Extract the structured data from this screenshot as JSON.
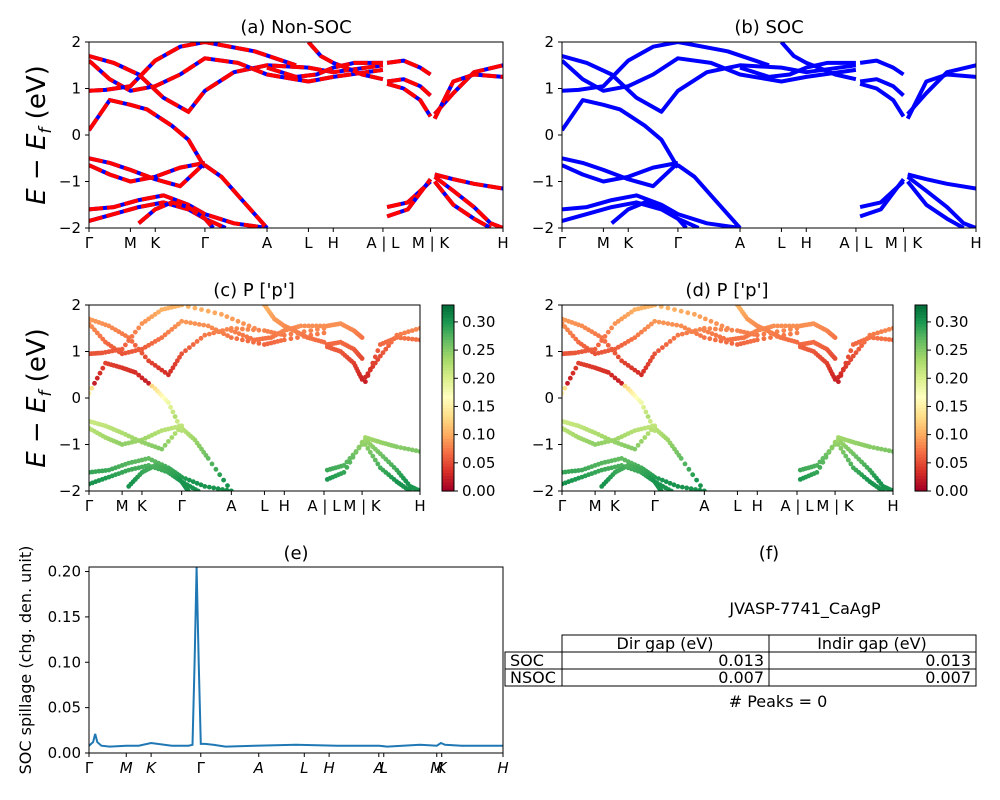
{
  "colors": {
    "nonsoc_dash": "#ff0000",
    "soc_line": "#0000ff",
    "spillage_line": "#1f77b4",
    "colormap": [
      "#a50026",
      "#d73027",
      "#f46d43",
      "#fdae61",
      "#fee08b",
      "#ffffbf",
      "#d9ef8b",
      "#a6d96a",
      "#66bd63",
      "#1a9850",
      "#006837"
    ]
  },
  "kpath": {
    "labels": [
      "Γ",
      "M",
      "K",
      "Γ",
      "A",
      "L",
      "H",
      "A | L",
      "M | K",
      "H"
    ],
    "positions": [
      0,
      0.1,
      0.16,
      0.28,
      0.43,
      0.53,
      0.59,
      0.71,
      0.825,
      1.0
    ],
    "breaks": [
      0.71,
      0.825
    ]
  },
  "spillage_kpath": {
    "labels": [
      "Γ",
      "M",
      "K",
      "Γ",
      "A",
      "L",
      "H",
      "A",
      "L",
      "M",
      "K",
      "H"
    ],
    "positions": [
      0,
      0.09,
      0.15,
      0.27,
      0.41,
      0.52,
      0.58,
      0.7,
      0.712,
      0.84,
      0.852,
      1.0
    ]
  },
  "chart_data": [
    {
      "type": "line",
      "title": "(a) Non-SOC",
      "ylabel": "E − E_f (eV)",
      "ylim": [
        -2,
        2
      ],
      "yticks": [
        "−2",
        "−1",
        "0",
        "1",
        "2"
      ],
      "series": [
        {
          "x": [
            0,
            0.06,
            0.12,
            0.18,
            0.24,
            0.28,
            0.35,
            0.43,
            0.53,
            0.59,
            0.71
          ],
          "y": [
            1.7,
            1.55,
            1.3,
            0.8,
            0.5,
            0.95,
            1.35,
            1.5,
            1.45,
            1.35,
            1.5
          ]
        },
        {
          "x": [
            0,
            0.05,
            0.1,
            0.16,
            0.22,
            0.28,
            0.36,
            0.43,
            0.53,
            0.59,
            0.71
          ],
          "y": [
            1.6,
            1.2,
            0.95,
            1.05,
            1.3,
            1.65,
            1.55,
            1.3,
            1.15,
            1.25,
            1.4
          ]
        },
        {
          "x": [
            0,
            0.04,
            0.1,
            0.16,
            0.22,
            0.28,
            0.4,
            0.5
          ],
          "y": [
            0.95,
            0.97,
            1.05,
            1.6,
            1.9,
            2.0,
            1.8,
            1.5
          ]
        },
        {
          "x": [
            0,
            0.05,
            0.1,
            0.14,
            0.2,
            0.24,
            0.28
          ],
          "y": [
            0.1,
            0.75,
            0.65,
            0.55,
            0.2,
            -0.1,
            -0.7
          ]
        },
        {
          "x": [
            0,
            0.05,
            0.1,
            0.16,
            0.22,
            0.28
          ],
          "y": [
            -0.65,
            -0.85,
            -1.0,
            -0.9,
            -0.7,
            -0.6
          ]
        },
        {
          "x": [
            0,
            0.05,
            0.1,
            0.16,
            0.22,
            0.28
          ],
          "y": [
            -0.5,
            -0.6,
            -0.75,
            -0.95,
            -1.1,
            -0.6
          ]
        },
        {
          "x": [
            0,
            0.06,
            0.12,
            0.18,
            0.24,
            0.28,
            0.35,
            0.43
          ],
          "y": [
            -1.6,
            -1.55,
            -1.4,
            -1.3,
            -1.5,
            -1.7,
            -1.9,
            -2.0
          ]
        },
        {
          "x": [
            0,
            0.06,
            0.12,
            0.18,
            0.24,
            0.28,
            0.33
          ],
          "y": [
            -1.85,
            -1.7,
            -1.55,
            -1.45,
            -1.6,
            -1.8,
            -2.0
          ]
        },
        {
          "x": [
            0.28,
            0.32,
            0.36,
            0.43
          ],
          "y": [
            -0.65,
            -0.9,
            -1.3,
            -2.0
          ]
        },
        {
          "x": [
            0.12,
            0.16,
            0.2,
            0.24,
            0.28,
            0.3
          ],
          "y": [
            -1.9,
            -1.6,
            -1.45,
            -1.55,
            -1.8,
            -2.0
          ]
        },
        {
          "x": [
            0.43,
            0.5,
            0.55,
            0.59,
            0.64,
            0.71
          ],
          "y": [
            1.45,
            1.25,
            1.3,
            1.45,
            1.55,
            1.55
          ]
        },
        {
          "x": [
            0.53,
            0.56,
            0.59,
            0.62,
            0.66,
            0.71
          ],
          "y": [
            2.0,
            1.7,
            1.55,
            1.45,
            1.3,
            1.2
          ]
        },
        {
          "x": [
            0.72,
            0.76,
            0.8,
            0.825
          ],
          "y": [
            1.55,
            1.6,
            1.45,
            1.3
          ]
        },
        {
          "x": [
            0.72,
            0.76,
            0.8,
            0.825
          ],
          "y": [
            1.15,
            1.2,
            1.05,
            0.85
          ]
        },
        {
          "x": [
            0.72,
            0.76,
            0.8,
            0.825
          ],
          "y": [
            1.1,
            1.0,
            0.75,
            0.4
          ]
        },
        {
          "x": [
            0.72,
            0.77,
            0.825
          ],
          "y": [
            -1.55,
            -1.45,
            -1.0
          ]
        },
        {
          "x": [
            0.72,
            0.77,
            0.825
          ],
          "y": [
            -1.75,
            -1.6,
            -0.95
          ]
        },
        {
          "x": [
            0.835,
            0.88,
            0.93,
            1.0
          ],
          "y": [
            0.45,
            0.9,
            1.35,
            1.5
          ]
        },
        {
          "x": [
            0.835,
            0.88,
            0.93,
            1.0
          ],
          "y": [
            0.35,
            1.15,
            1.3,
            1.25
          ]
        },
        {
          "x": [
            0.835,
            0.88,
            0.93,
            1.0
          ],
          "y": [
            -0.85,
            -0.95,
            -1.05,
            -1.15
          ]
        },
        {
          "x": [
            0.835,
            0.88,
            0.93,
            0.97,
            1.0
          ],
          "y": [
            -0.9,
            -1.2,
            -1.55,
            -1.9,
            -2.0
          ]
        },
        {
          "x": [
            0.835,
            0.88,
            0.93,
            0.97
          ],
          "y": [
            -1.0,
            -1.5,
            -1.8,
            -2.0
          ]
        }
      ]
    },
    {
      "type": "line",
      "title": "(b) SOC",
      "ylim": [
        -2,
        2
      ],
      "yticks": [
        "−2",
        "−1",
        "0",
        "1",
        "2"
      ]
    },
    {
      "type": "scatter",
      "title": "(c)  P ['p']",
      "ylabel": "E − E_f (eV)",
      "ylim": [
        -2,
        2
      ],
      "yticks": [
        "−2",
        "−1",
        "0",
        "1",
        "2"
      ],
      "colorbar": {
        "ticks": [
          "0.00",
          "0.05",
          "0.10",
          "0.15",
          "0.20",
          "0.25",
          "0.30"
        ],
        "range": [
          0,
          0.33
        ]
      }
    },
    {
      "type": "scatter",
      "title": "(d) P ['p']",
      "ylim": [
        -2,
        2
      ],
      "yticks": [
        "−2",
        "−1",
        "0",
        "1",
        "2"
      ],
      "colorbar": {
        "ticks": [
          "0.00",
          "0.05",
          "0.10",
          "0.15",
          "0.20",
          "0.25",
          "0.30"
        ],
        "range": [
          0,
          0.33
        ]
      }
    },
    {
      "type": "line",
      "title": "(e)",
      "ylabel": "SOC spillage (chg. den. unit)",
      "ylim": [
        0,
        0.205
      ],
      "yticks": [
        "0.00",
        "0.05",
        "0.10",
        "0.15",
        "0.20"
      ],
      "x": [
        0,
        0.01,
        0.015,
        0.02,
        0.03,
        0.05,
        0.09,
        0.12,
        0.15,
        0.2,
        0.24,
        0.25,
        0.255,
        0.26,
        0.265,
        0.27,
        0.28,
        0.3,
        0.33,
        0.4,
        0.5,
        0.6,
        0.7,
        0.72,
        0.8,
        0.84,
        0.85,
        0.86,
        0.9,
        1.0
      ],
      "y": [
        0.008,
        0.012,
        0.021,
        0.012,
        0.008,
        0.007,
        0.008,
        0.008,
        0.011,
        0.008,
        0.008,
        0.009,
        0.1,
        0.205,
        0.1,
        0.01,
        0.01,
        0.009,
        0.007,
        0.008,
        0.009,
        0.008,
        0.008,
        0.007,
        0.009,
        0.008,
        0.011,
        0.009,
        0.008,
        0.008
      ]
    }
  ],
  "panel_f": {
    "title": "(f)",
    "material": "JVASP-7741_CaAgP",
    "table": {
      "headers": [
        "Dir gap (eV)",
        "Indir gap (eV)"
      ],
      "rows": [
        {
          "label": "SOC",
          "dir": "0.013",
          "indir": "0.013"
        },
        {
          "label": "NSOC",
          "dir": "0.007",
          "indir": "0.007"
        }
      ]
    },
    "peaks": "# Peaks = 0"
  }
}
